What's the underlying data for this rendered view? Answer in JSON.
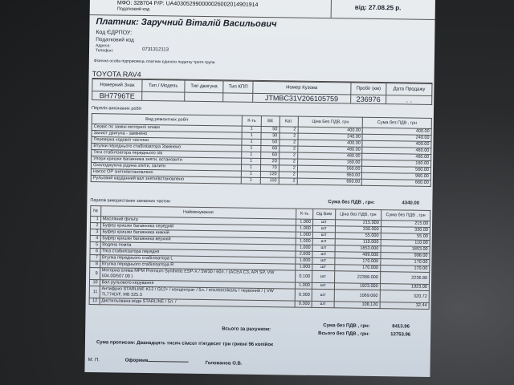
{
  "header": {
    "bank_line": "МФО: 328704 Р/Р: UA403052990000026002014901914",
    "tax_code_label": "Податковий код",
    "date": "від: 27.08.25 р."
  },
  "payer": {
    "title": "Платник:  Заручний Віталій Васильович",
    "edrpou_label": "Код ЄДРПОУ:",
    "tax_label": "Податковий код",
    "address_label": "Адреса:",
    "phone_label": "Телефон:",
    "phone": "0731312113",
    "note": "Фізична особа підприємець платник єдиного податку третя група"
  },
  "vehicle": {
    "model": "TOYOTA RAV4",
    "headers": [
      "Номерний Знак",
      "Тип / Модель",
      "Тип двигуна",
      "Тип КПП",
      "Номер Кузова",
      "Пробіг (км)",
      "Дата Продажу"
    ],
    "values": [
      "BH7796TE",
      "",
      "",
      "",
      "JTMBC31V206105759",
      "236976",
      ". ."
    ]
  },
  "works": {
    "title": "Перелік виконаних робіт",
    "headers": [
      "Вид ремонтних робіт",
      "К-ть",
      "ВЕ",
      "Кат.",
      "Ціна Без ПДВ, грн",
      "Сума без ПДВ , грн"
    ],
    "rows": [
      [
        "Сервіс по заміні моторної оливи",
        "1",
        "50",
        "2",
        "400.00",
        "400.00"
      ],
      [
        "Захист двигуна  - замінено",
        "1",
        "30",
        "2",
        "240.00",
        "240.00"
      ],
      [
        "Перевірка ходової частини",
        "1",
        "50",
        "2",
        "400.00",
        "400.00"
      ],
      [
        "Втулки переднього стабілізатора Замінено",
        "1",
        "60",
        "2",
        "480.00",
        "480.00"
      ],
      [
        "Тяги стабілізатора переднього  з/в",
        "1",
        "60",
        "2",
        "480.00",
        "480.00"
      ],
      [
        "Упори кришки багажника зняти, встановити",
        "1",
        "20",
        "2",
        "160.00",
        "160.00"
      ],
      [
        "Охолоджуюча рідина злити, залити",
        "1",
        "70",
        "2",
        "560.00",
        "560.00"
      ],
      [
        "Насос ОР зняти/встановлено",
        "1",
        "120",
        "2",
        "960.00",
        "960.00"
      ],
      [
        "Рульовий карданний вал зняти/встановлено",
        "1",
        "110",
        "2",
        "660.00",
        "660.00"
      ]
    ],
    "sum_label": "Сума без ПДВ , грн:",
    "sum": "4340.00"
  },
  "parts": {
    "title": "Перелік використаних запасних частин",
    "headers": [
      "№",
      "Найменування",
      "К-ть",
      "Од Вим",
      "Ціна без ПДВ, грн",
      "Сума без ПДВ , грн"
    ],
    "rows": [
      [
        "1",
        "Масляний фільтр",
        "1.000",
        "шт",
        "215.000",
        "215.00"
      ],
      [
        "2",
        "Буфер кришки багажника середній",
        "1.000",
        "шт",
        "330.000",
        "330.00"
      ],
      [
        "3",
        "Буфер кришки багажника нижній",
        "1.000",
        "шт",
        "55.000",
        "55.00"
      ],
      [
        "4",
        "Буфер кришки багажника верхній",
        "1.000",
        "шт",
        "110.000",
        "110.00"
      ],
      [
        "5",
        "Водяна помпа",
        "1.000",
        "шт",
        "1853.000",
        "1853.00"
      ],
      [
        "6",
        "Тяга стабилізатора передня",
        "2.000",
        "шт",
        "499.000",
        "998.00"
      ],
      [
        "7",
        "Втулка переднього стабілізатора L",
        "1.000",
        "шт",
        "170.000",
        "170.00"
      ],
      [
        "8",
        "Втулка переднього стабілізатора R",
        "1.000",
        "шт",
        "170.000",
        "170.00"
      ],
      [
        "9",
        "Моторна олива MPM Premium Synthetic ESP-X / 5W30 / 60л. / (ACEA C3, API SP, VW 504.00/507.00 )",
        "0.100",
        "шт",
        "22368.000",
        "2236.80"
      ],
      [
        "10",
        "Вал рульового керування",
        "1.000",
        "шт",
        "1923.000",
        "1923.00"
      ],
      [
        "11",
        "Антифриз STARLINE K12 / G12+ / концентрат / 5л. / етиленгліколь / червоний / ( VW TL774D/F, MB 325.3",
        "0.300",
        "шт",
        "1069.060",
        "320.72"
      ],
      [
        "12",
        "Дистильована вода STARLINE / 5л. /",
        "0.300",
        "шт",
        "108.120",
        "32.44"
      ]
    ]
  },
  "totals": {
    "total_label": "Всього за рахунком:",
    "sum_label": "Сума без ПДВ , грн:",
    "sum": "8413.96",
    "all_label": "Всього без ПДВ , грн:",
    "all": "12753.96",
    "in_words": "Сума прописом: Дванадцять тисяч сімсот п'ятдесят три гривні 96 копійок"
  },
  "footer": {
    "stamp": "М. П.",
    "issued_label": "Оформив",
    "signer": "Голованов О.В."
  }
}
